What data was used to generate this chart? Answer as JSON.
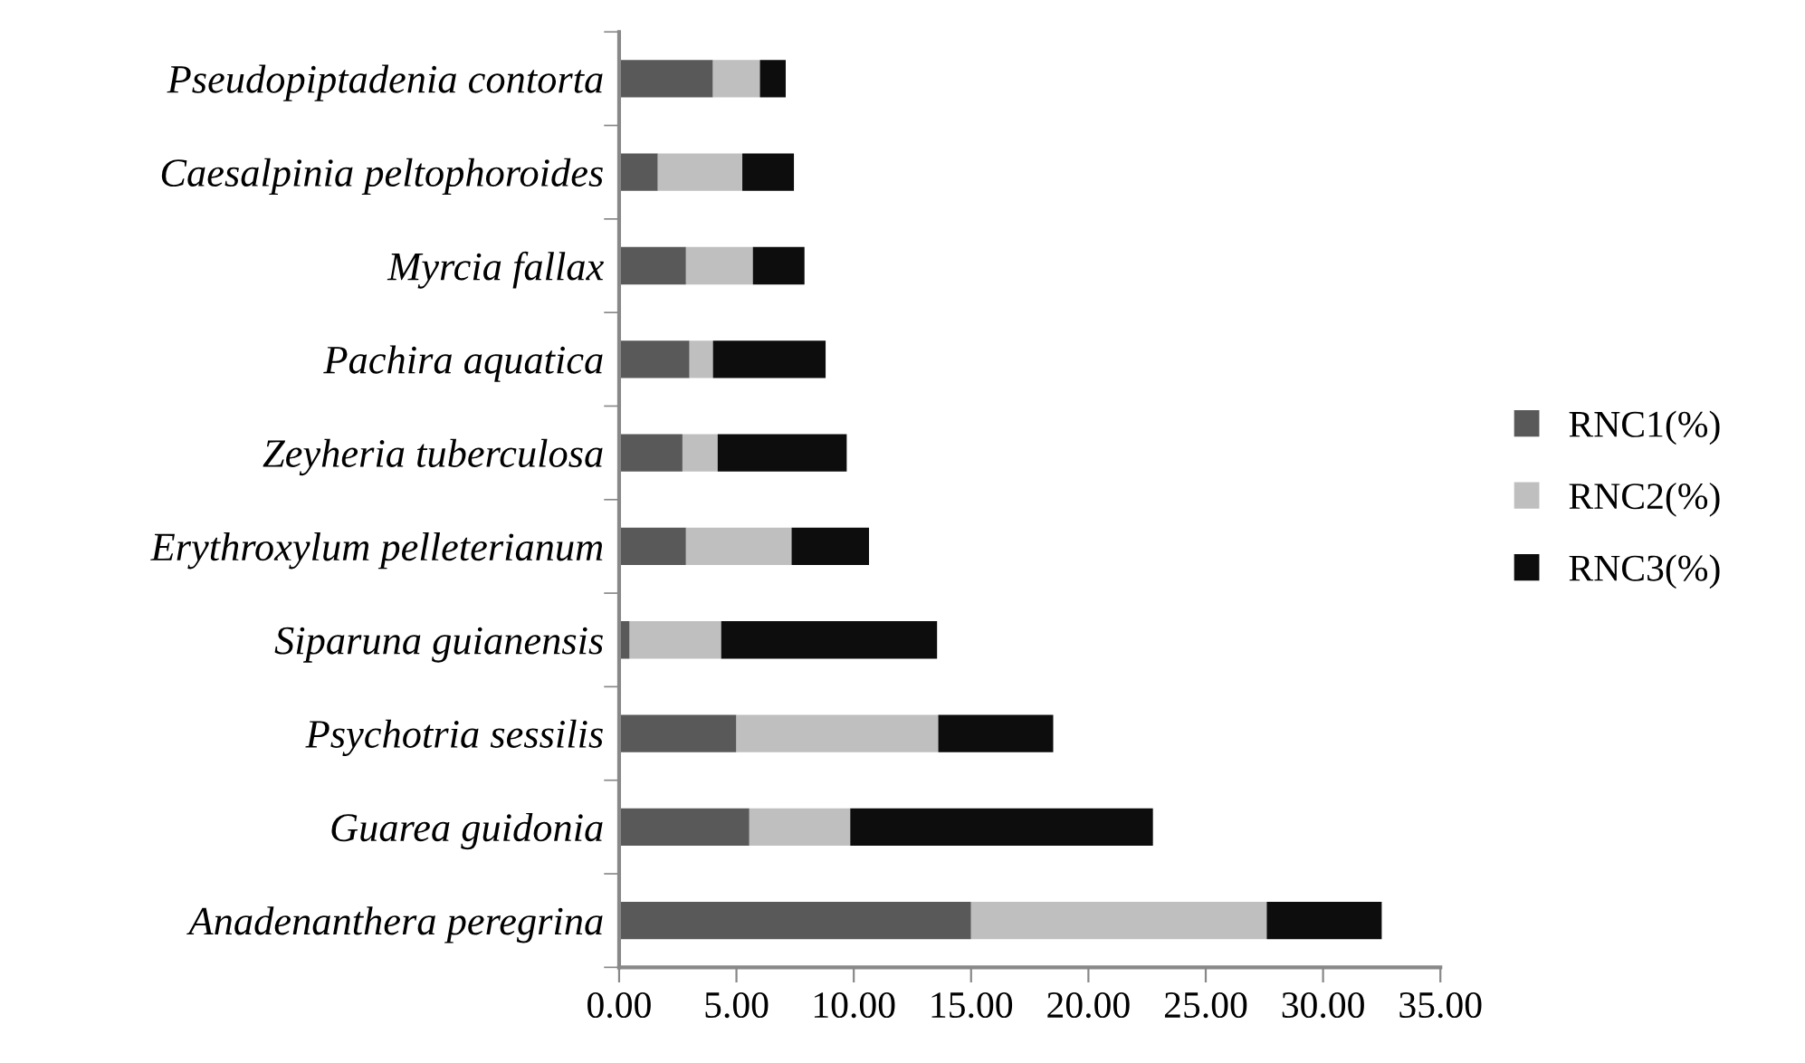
{
  "chart_data": {
    "type": "bar",
    "orientation": "horizontal",
    "stacked": true,
    "categories": [
      "Pseudopiptadenia contorta",
      "Caesalpinia peltophoroides",
      "Myrcia fallax",
      "Pachira aquatica",
      "Zeyheria tuberculosa",
      "Erythroxylum pelleterianum",
      "Siparuna guianensis",
      "Psychotria sessilis",
      "Guarea guidonia",
      "Anadenanthera peregrina"
    ],
    "series": [
      {
        "name": "RNC1(%)",
        "color": "#595959",
        "values": [
          4.0,
          1.65,
          2.85,
          3.0,
          2.7,
          2.85,
          0.45,
          5.0,
          5.55,
          15.0
        ]
      },
      {
        "name": "RNC2(%)",
        "color": "#bfbfbf",
        "values": [
          2.0,
          3.6,
          2.85,
          1.0,
          1.5,
          4.5,
          3.9,
          8.6,
          4.3,
          12.6
        ]
      },
      {
        "name": "RNC3(%)",
        "color": "#0d0d0d",
        "values": [
          1.1,
          2.2,
          2.2,
          4.8,
          5.5,
          3.3,
          9.2,
          4.9,
          12.9,
          4.9
        ]
      }
    ],
    "xlim": [
      0,
      35
    ],
    "xticks": [
      {
        "value": 0,
        "label": "0.00"
      },
      {
        "value": 5,
        "label": "5.00"
      },
      {
        "value": 10,
        "label": "10.00"
      },
      {
        "value": 15,
        "label": "15.00"
      },
      {
        "value": 20,
        "label": "20.00"
      },
      {
        "value": 25,
        "label": "25.00"
      },
      {
        "value": 30,
        "label": "30.00"
      },
      {
        "value": 35,
        "label": "35.00"
      }
    ],
    "grid": false,
    "legend": "right"
  }
}
